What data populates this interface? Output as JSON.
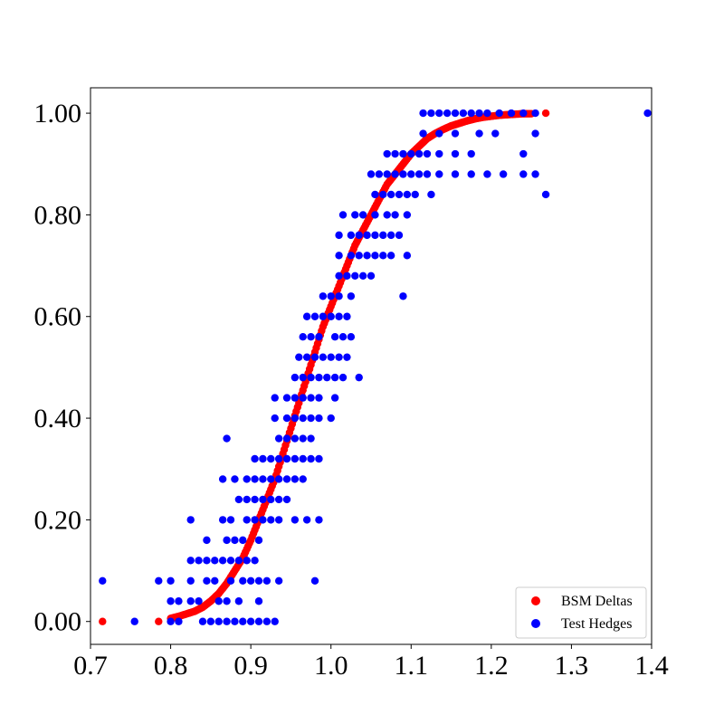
{
  "chart_data": {
    "type": "scatter",
    "title": "",
    "xlabel": "",
    "ylabel": "",
    "xlim": [
      0.7,
      1.4
    ],
    "ylim": [
      -0.045,
      1.05
    ],
    "xticks": [
      0.7,
      0.8,
      0.9,
      1.0,
      1.1,
      1.2,
      1.3,
      1.4
    ],
    "xtick_labels": [
      "0.7",
      "0.8",
      "0.9",
      "1.0",
      "1.1",
      "1.2",
      "1.3",
      "1.4"
    ],
    "yticks": [
      0.0,
      0.2,
      0.4,
      0.6,
      0.8,
      1.0
    ],
    "ytick_labels": [
      "0.00",
      "0.20",
      "0.40",
      "0.60",
      "0.80",
      "1.00"
    ],
    "grid": false,
    "legend_position": "lower right",
    "series": [
      {
        "name": "BSM Deltas",
        "color": "#ff0000",
        "marker": "circle",
        "points": [
          [
            0.715,
            0.0
          ],
          [
            0.785,
            0.0
          ],
          [
            0.8,
            0.006
          ],
          [
            0.81,
            0.01
          ],
          [
            0.82,
            0.015
          ],
          [
            0.83,
            0.02
          ],
          [
            0.84,
            0.028
          ],
          [
            0.85,
            0.04
          ],
          [
            0.86,
            0.055
          ],
          [
            0.87,
            0.075
          ],
          [
            0.88,
            0.1
          ],
          [
            0.89,
            0.125
          ],
          [
            0.9,
            0.16
          ],
          [
            0.91,
            0.2
          ],
          [
            0.92,
            0.24
          ],
          [
            0.93,
            0.28
          ],
          [
            0.94,
            0.33
          ],
          [
            0.95,
            0.38
          ],
          [
            0.96,
            0.43
          ],
          [
            0.97,
            0.48
          ],
          [
            0.98,
            0.53
          ],
          [
            0.99,
            0.58
          ],
          [
            1.0,
            0.62
          ],
          [
            1.01,
            0.66
          ],
          [
            1.02,
            0.7
          ],
          [
            1.03,
            0.74
          ],
          [
            1.04,
            0.77
          ],
          [
            1.05,
            0.8
          ],
          [
            1.06,
            0.83
          ],
          [
            1.07,
            0.86
          ],
          [
            1.08,
            0.88
          ],
          [
            1.09,
            0.9
          ],
          [
            1.1,
            0.92
          ],
          [
            1.11,
            0.935
          ],
          [
            1.12,
            0.95
          ],
          [
            1.13,
            0.96
          ],
          [
            1.14,
            0.968
          ],
          [
            1.15,
            0.975
          ],
          [
            1.16,
            0.98
          ],
          [
            1.17,
            0.985
          ],
          [
            1.18,
            0.989
          ],
          [
            1.19,
            0.992
          ],
          [
            1.2,
            0.994
          ],
          [
            1.21,
            0.996
          ],
          [
            1.22,
            0.997
          ],
          [
            1.23,
            0.998
          ],
          [
            1.24,
            0.999
          ],
          [
            1.25,
            0.999
          ],
          [
            1.268,
            1.0
          ]
        ]
      },
      {
        "name": "Test Hedges",
        "color": "#0000ff",
        "marker": "circle",
        "points": [
          [
            0.715,
            0.08
          ],
          [
            0.755,
            0.0
          ],
          [
            0.8,
            0.0
          ],
          [
            0.81,
            0.0
          ],
          [
            0.84,
            0.0
          ],
          [
            0.85,
            0.0
          ],
          [
            0.86,
            0.0
          ],
          [
            0.87,
            0.0
          ],
          [
            0.88,
            0.0
          ],
          [
            0.89,
            0.0
          ],
          [
            0.9,
            0.0
          ],
          [
            0.91,
            0.0
          ],
          [
            0.92,
            0.0
          ],
          [
            0.93,
            0.0
          ],
          [
            0.785,
            0.08
          ],
          [
            0.8,
            0.08
          ],
          [
            0.825,
            0.08
          ],
          [
            0.845,
            0.08
          ],
          [
            0.855,
            0.08
          ],
          [
            0.875,
            0.08
          ],
          [
            0.89,
            0.08
          ],
          [
            0.9,
            0.08
          ],
          [
            0.91,
            0.08
          ],
          [
            0.92,
            0.08
          ],
          [
            0.935,
            0.08
          ],
          [
            0.98,
            0.08
          ],
          [
            0.8,
            0.04
          ],
          [
            0.81,
            0.04
          ],
          [
            0.825,
            0.04
          ],
          [
            0.835,
            0.04
          ],
          [
            0.86,
            0.04
          ],
          [
            0.87,
            0.04
          ],
          [
            0.885,
            0.04
          ],
          [
            0.91,
            0.04
          ],
          [
            0.825,
            0.12
          ],
          [
            0.835,
            0.12
          ],
          [
            0.845,
            0.12
          ],
          [
            0.855,
            0.12
          ],
          [
            0.865,
            0.12
          ],
          [
            0.875,
            0.12
          ],
          [
            0.885,
            0.12
          ],
          [
            0.895,
            0.12
          ],
          [
            0.905,
            0.12
          ],
          [
            0.845,
            0.16
          ],
          [
            0.87,
            0.16
          ],
          [
            0.88,
            0.16
          ],
          [
            0.89,
            0.16
          ],
          [
            0.91,
            0.16
          ],
          [
            0.825,
            0.2
          ],
          [
            0.865,
            0.2
          ],
          [
            0.875,
            0.2
          ],
          [
            0.895,
            0.2
          ],
          [
            0.905,
            0.2
          ],
          [
            0.915,
            0.2
          ],
          [
            0.925,
            0.2
          ],
          [
            0.935,
            0.2
          ],
          [
            0.955,
            0.2
          ],
          [
            0.97,
            0.2
          ],
          [
            0.985,
            0.2
          ],
          [
            0.885,
            0.24
          ],
          [
            0.895,
            0.24
          ],
          [
            0.905,
            0.24
          ],
          [
            0.915,
            0.24
          ],
          [
            0.925,
            0.24
          ],
          [
            0.935,
            0.24
          ],
          [
            0.945,
            0.24
          ],
          [
            0.865,
            0.28
          ],
          [
            0.88,
            0.28
          ],
          [
            0.895,
            0.28
          ],
          [
            0.905,
            0.28
          ],
          [
            0.915,
            0.28
          ],
          [
            0.925,
            0.28
          ],
          [
            0.935,
            0.28
          ],
          [
            0.945,
            0.28
          ],
          [
            0.955,
            0.28
          ],
          [
            0.965,
            0.28
          ],
          [
            0.905,
            0.32
          ],
          [
            0.915,
            0.32
          ],
          [
            0.925,
            0.32
          ],
          [
            0.935,
            0.32
          ],
          [
            0.945,
            0.32
          ],
          [
            0.955,
            0.32
          ],
          [
            0.965,
            0.32
          ],
          [
            0.975,
            0.32
          ],
          [
            0.985,
            0.32
          ],
          [
            0.87,
            0.36
          ],
          [
            0.935,
            0.36
          ],
          [
            0.945,
            0.36
          ],
          [
            0.955,
            0.36
          ],
          [
            0.965,
            0.36
          ],
          [
            0.975,
            0.36
          ],
          [
            0.93,
            0.4
          ],
          [
            0.945,
            0.4
          ],
          [
            0.955,
            0.4
          ],
          [
            0.965,
            0.4
          ],
          [
            0.975,
            0.4
          ],
          [
            0.985,
            0.4
          ],
          [
            1.0,
            0.4
          ],
          [
            0.93,
            0.44
          ],
          [
            0.945,
            0.44
          ],
          [
            0.955,
            0.44
          ],
          [
            0.965,
            0.44
          ],
          [
            0.975,
            0.44
          ],
          [
            0.985,
            0.44
          ],
          [
            1.005,
            0.44
          ],
          [
            0.955,
            0.48
          ],
          [
            0.965,
            0.48
          ],
          [
            0.975,
            0.48
          ],
          [
            0.985,
            0.48
          ],
          [
            0.995,
            0.48
          ],
          [
            1.005,
            0.48
          ],
          [
            1.015,
            0.48
          ],
          [
            1.035,
            0.48
          ],
          [
            0.96,
            0.52
          ],
          [
            0.97,
            0.52
          ],
          [
            0.98,
            0.52
          ],
          [
            0.99,
            0.52
          ],
          [
            1.0,
            0.52
          ],
          [
            1.01,
            0.52
          ],
          [
            1.02,
            0.52
          ],
          [
            0.965,
            0.56
          ],
          [
            0.975,
            0.56
          ],
          [
            0.985,
            0.56
          ],
          [
            1.005,
            0.56
          ],
          [
            1.015,
            0.56
          ],
          [
            1.025,
            0.56
          ],
          [
            0.97,
            0.6
          ],
          [
            0.98,
            0.6
          ],
          [
            0.99,
            0.6
          ],
          [
            1.0,
            0.6
          ],
          [
            1.01,
            0.6
          ],
          [
            1.02,
            0.6
          ],
          [
            0.99,
            0.64
          ],
          [
            1.0,
            0.64
          ],
          [
            1.01,
            0.64
          ],
          [
            1.025,
            0.64
          ],
          [
            1.09,
            0.64
          ],
          [
            1.01,
            0.68
          ],
          [
            1.02,
            0.68
          ],
          [
            1.03,
            0.68
          ],
          [
            1.04,
            0.68
          ],
          [
            1.05,
            0.68
          ],
          [
            1.01,
            0.72
          ],
          [
            1.025,
            0.72
          ],
          [
            1.035,
            0.72
          ],
          [
            1.045,
            0.72
          ],
          [
            1.055,
            0.72
          ],
          [
            1.065,
            0.72
          ],
          [
            1.075,
            0.72
          ],
          [
            1.095,
            0.72
          ],
          [
            1.01,
            0.76
          ],
          [
            1.025,
            0.76
          ],
          [
            1.035,
            0.76
          ],
          [
            1.045,
            0.76
          ],
          [
            1.055,
            0.76
          ],
          [
            1.065,
            0.76
          ],
          [
            1.075,
            0.76
          ],
          [
            1.085,
            0.76
          ],
          [
            1.015,
            0.8
          ],
          [
            1.03,
            0.8
          ],
          [
            1.04,
            0.8
          ],
          [
            1.055,
            0.8
          ],
          [
            1.07,
            0.8
          ],
          [
            1.08,
            0.8
          ],
          [
            1.095,
            0.8
          ],
          [
            1.055,
            0.84
          ],
          [
            1.065,
            0.84
          ],
          [
            1.075,
            0.84
          ],
          [
            1.085,
            0.84
          ],
          [
            1.095,
            0.84
          ],
          [
            1.105,
            0.84
          ],
          [
            1.125,
            0.84
          ],
          [
            1.268,
            0.84
          ],
          [
            1.05,
            0.88
          ],
          [
            1.06,
            0.88
          ],
          [
            1.07,
            0.88
          ],
          [
            1.08,
            0.88
          ],
          [
            1.09,
            0.88
          ],
          [
            1.1,
            0.88
          ],
          [
            1.11,
            0.88
          ],
          [
            1.12,
            0.88
          ],
          [
            1.135,
            0.88
          ],
          [
            1.155,
            0.88
          ],
          [
            1.175,
            0.88
          ],
          [
            1.195,
            0.88
          ],
          [
            1.215,
            0.88
          ],
          [
            1.24,
            0.88
          ],
          [
            1.255,
            0.88
          ],
          [
            1.07,
            0.92
          ],
          [
            1.08,
            0.92
          ],
          [
            1.09,
            0.92
          ],
          [
            1.1,
            0.92
          ],
          [
            1.11,
            0.92
          ],
          [
            1.12,
            0.92
          ],
          [
            1.135,
            0.92
          ],
          [
            1.155,
            0.92
          ],
          [
            1.175,
            0.92
          ],
          [
            1.24,
            0.92
          ],
          [
            1.115,
            0.96
          ],
          [
            1.135,
            0.96
          ],
          [
            1.155,
            0.96
          ],
          [
            1.185,
            0.96
          ],
          [
            1.205,
            0.96
          ],
          [
            1.255,
            0.96
          ],
          [
            1.115,
            1.0
          ],
          [
            1.125,
            1.0
          ],
          [
            1.135,
            1.0
          ],
          [
            1.145,
            1.0
          ],
          [
            1.155,
            1.0
          ],
          [
            1.165,
            1.0
          ],
          [
            1.175,
            1.0
          ],
          [
            1.185,
            1.0
          ],
          [
            1.195,
            1.0
          ],
          [
            1.21,
            1.0
          ],
          [
            1.225,
            1.0
          ],
          [
            1.24,
            1.0
          ],
          [
            1.255,
            1.0
          ],
          [
            1.395,
            1.0
          ]
        ]
      }
    ]
  }
}
